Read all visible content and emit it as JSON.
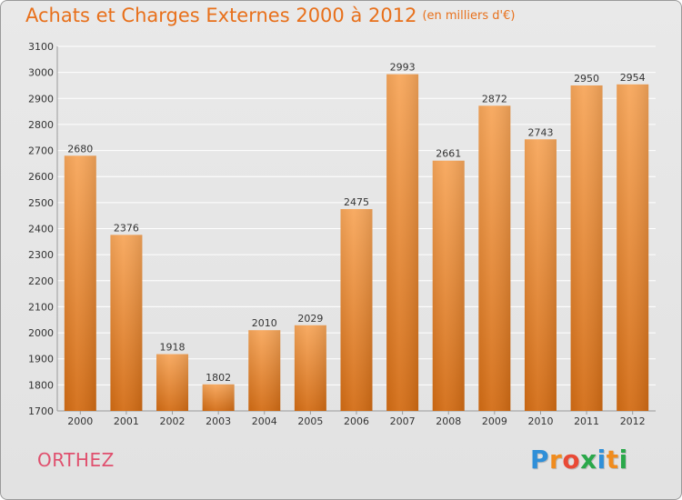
{
  "title": "Achats et Charges Externes 2000 à 2012",
  "unit": "(en milliers d'€)",
  "city": "ORTHEZ",
  "logo": {
    "letters": [
      "P",
      "r",
      "o",
      "x",
      "i",
      "t",
      "i"
    ],
    "colors": [
      "#2f8fd8",
      "#f08c1e",
      "#e94a36",
      "#2aa84a",
      "#2f8fd8",
      "#f08c1e",
      "#2aa84a"
    ]
  },
  "colors": {
    "title": "#e8701b",
    "bar_top": "#f7a65a",
    "bar_bottom": "#d36c14",
    "city": "#e0506e"
  },
  "chart_data": {
    "type": "bar",
    "categories": [
      "2000",
      "2001",
      "2002",
      "2003",
      "2004",
      "2005",
      "2006",
      "2007",
      "2008",
      "2009",
      "2010",
      "2011",
      "2012"
    ],
    "values": [
      2680,
      2376,
      1918,
      1802,
      2010,
      2029,
      2475,
      2993,
      2661,
      2872,
      2743,
      2950,
      2954
    ],
    "ylim": [
      1700,
      3100
    ],
    "yticks": [
      1700,
      1800,
      1900,
      2000,
      2100,
      2200,
      2300,
      2400,
      2500,
      2600,
      2700,
      2800,
      2900,
      3000,
      3100
    ],
    "grid": true,
    "data_labels": true
  }
}
